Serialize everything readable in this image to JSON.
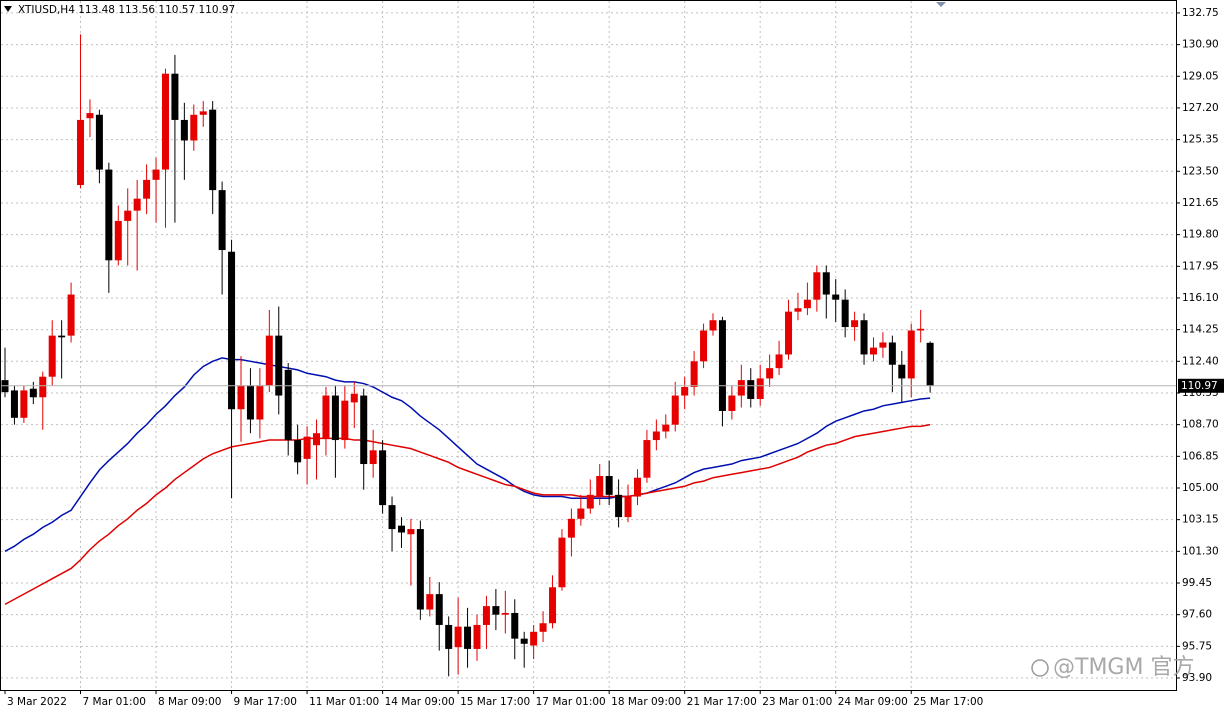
{
  "chart_data": {
    "type": "candlestick",
    "title": "XTIUSD,H4",
    "watermark": "@TMGM 官方",
    "categories": [
      "3 Mar 2022",
      null,
      null,
      null,
      null,
      null,
      null,
      null,
      "7 Mar 01:00",
      null,
      null,
      null,
      null,
      null,
      null,
      null,
      "8 Mar 09:00",
      null,
      null,
      null,
      null,
      null,
      null,
      null,
      "9 Mar 17:00",
      null,
      null,
      null,
      null,
      null,
      null,
      null,
      "11 Mar 01:00",
      null,
      null,
      null,
      null,
      null,
      null,
      null,
      "14 Mar 09:00",
      null,
      null,
      null,
      null,
      null,
      null,
      null,
      "15 Mar 17:00",
      null,
      null,
      null,
      null,
      null,
      null,
      null,
      "17 Mar 01:00",
      null,
      null,
      null,
      null,
      null,
      null,
      null,
      "18 Mar 09:00",
      null,
      null,
      null,
      null,
      null,
      null,
      null,
      "21 Mar 17:00",
      null,
      null,
      null,
      null,
      null,
      null,
      null,
      "23 Mar 01:00",
      null,
      null,
      null,
      null,
      null,
      null,
      null,
      "24 Mar 09:00",
      null,
      null,
      null,
      null,
      null,
      null,
      null,
      "25 Mar 17:00",
      null,
      null
    ],
    "open": [
      111.3,
      110.7,
      109.1,
      110.8,
      110.3,
      111.5,
      113.9,
      113.9,
      122.7,
      126.6,
      126.8,
      123.6,
      118.3,
      120.6,
      121.2,
      121.9,
      123.0,
      123.6,
      129.2,
      126.5,
      125.3,
      126.8,
      127.1,
      122.4,
      118.8,
      109.6,
      111.0,
      109.0,
      111.0,
      113.9,
      111.9,
      107.8,
      106.7,
      107.5,
      107.9,
      110.4,
      107.8,
      110.0,
      110.4,
      106.4,
      107.2,
      104.0,
      102.8,
      102.3,
      102.6,
      97.9,
      98.8,
      97.0,
      95.7,
      96.9,
      95.6,
      97.0,
      98.1,
      97.6,
      97.7,
      96.2,
      95.8,
      96.6,
      97.1,
      99.2,
      102.1,
      103.2,
      103.8,
      104.5,
      105.7,
      104.6,
      103.3,
      104.5,
      105.6,
      107.8,
      108.3,
      108.7,
      110.4,
      110.9,
      112.4,
      114.2,
      114.8,
      109.5,
      110.4,
      111.3,
      110.2,
      111.4,
      112.0,
      112.8,
      115.3,
      115.5,
      116.0,
      117.6,
      116.3,
      116.0,
      114.4,
      114.8,
      112.8,
      113.2,
      113.5,
      112.2,
      111.4,
      114.2,
      113.48
    ],
    "high": [
      113.2,
      111.0,
      111.0,
      111.2,
      111.8,
      114.8,
      114.8,
      117.0,
      131.5,
      127.7,
      127.1,
      124.0,
      121.5,
      122.5,
      123.0,
      123.9,
      124.3,
      129.5,
      130.3,
      127.5,
      127.4,
      127.6,
      127.6,
      122.9,
      119.5,
      112.7,
      112.0,
      112.0,
      115.4,
      115.6,
      112.3,
      108.7,
      108.6,
      109.0,
      110.9,
      111.0,
      111.0,
      111.2,
      110.8,
      108.4,
      107.8,
      104.5,
      103.3,
      103.2,
      103.1,
      99.8,
      99.5,
      97.5,
      98.6,
      98.0,
      97.6,
      98.7,
      99.1,
      99.0,
      98.5,
      96.6,
      97.0,
      97.8,
      99.9,
      102.6,
      103.8,
      104.6,
      105.5,
      106.4,
      106.6,
      105.5,
      105.2,
      106.1,
      108.4,
      109.0,
      109.3,
      111.2,
      111.5,
      113.0,
      114.6,
      115.2,
      115.0,
      111.0,
      112.2,
      112.0,
      112.2,
      112.8,
      113.6,
      116.0,
      116.4,
      117.0,
      118.0,
      118.0,
      117.2,
      116.6,
      115.3,
      115.2,
      113.8,
      114.1,
      113.9,
      113.0,
      114.6,
      115.4,
      113.56
    ],
    "low": [
      110.3,
      108.7,
      108.8,
      109.9,
      108.4,
      111.0,
      111.4,
      113.5,
      122.5,
      125.5,
      122.8,
      116.4,
      118.0,
      118.0,
      117.7,
      121.0,
      120.5,
      120.2,
      120.5,
      123.0,
      124.7,
      126.1,
      121.0,
      116.3,
      104.4,
      107.7,
      108.2,
      107.9,
      110.6,
      109.3,
      106.9,
      105.8,
      105.2,
      105.5,
      106.9,
      105.6,
      107.3,
      108.5,
      104.9,
      105.6,
      103.5,
      101.3,
      101.5,
      99.3,
      97.3,
      97.5,
      95.5,
      94.0,
      94.1,
      94.5,
      94.9,
      95.6,
      96.7,
      96.5,
      95.0,
      94.5,
      95.0,
      96.0,
      96.8,
      99.0,
      101.0,
      102.8,
      103.5,
      104.0,
      104.0,
      102.7,
      103.0,
      104.0,
      105.3,
      107.2,
      107.9,
      108.3,
      109.6,
      110.4,
      112.0,
      113.9,
      108.6,
      109.0,
      109.7,
      109.7,
      109.8,
      110.9,
      111.6,
      112.5,
      114.8,
      115.1,
      115.3,
      114.9,
      114.7,
      113.8,
      113.6,
      112.2,
      112.4,
      112.6,
      110.6,
      110.0,
      110.3,
      113.5,
      110.57
    ],
    "close": [
      110.6,
      109.1,
      110.7,
      110.3,
      111.5,
      113.9,
      113.8,
      116.3,
      126.5,
      126.9,
      123.6,
      118.3,
      120.6,
      121.2,
      121.9,
      123.0,
      123.6,
      129.2,
      126.5,
      125.3,
      126.8,
      127.0,
      122.4,
      118.9,
      109.6,
      111.0,
      109.0,
      111.0,
      113.9,
      110.4,
      107.8,
      106.5,
      108.0,
      108.2,
      110.4,
      107.8,
      110.1,
      110.5,
      106.4,
      107.2,
      104.0,
      102.6,
      102.4,
      102.6,
      97.9,
      98.8,
      97.0,
      95.6,
      96.9,
      95.6,
      97.0,
      98.1,
      97.6,
      97.7,
      96.2,
      95.9,
      96.6,
      97.1,
      99.2,
      102.1,
      103.2,
      103.8,
      104.6,
      105.7,
      104.6,
      103.3,
      104.5,
      105.6,
      107.8,
      108.3,
      108.7,
      110.4,
      110.9,
      112.4,
      114.2,
      114.8,
      109.5,
      110.4,
      111.3,
      110.2,
      111.4,
      112.0,
      112.8,
      115.3,
      115.5,
      116.0,
      117.6,
      116.3,
      116.0,
      114.4,
      114.8,
      112.8,
      113.2,
      113.5,
      112.2,
      111.4,
      114.2,
      114.3,
      110.97
    ],
    "up_color": "#e60000",
    "down_color": "#000000",
    "lines": [
      {
        "color": "#0010b0",
        "values": [
          101.3,
          101.6,
          102.0,
          102.3,
          102.7,
          103.0,
          103.4,
          103.7,
          104.5,
          105.3,
          106.05,
          106.6,
          107.1,
          107.6,
          108.2,
          108.7,
          109.3,
          109.8,
          110.4,
          110.9,
          111.6,
          112.1,
          112.4,
          112.6,
          112.5,
          112.5,
          112.4,
          112.3,
          112.2,
          112.1,
          112.0,
          111.9,
          111.7,
          111.6,
          111.5,
          111.3,
          111.2,
          111.2,
          111.1,
          110.9,
          110.6,
          110.3,
          110.1,
          109.7,
          109.2,
          108.8,
          108.4,
          107.9,
          107.4,
          106.9,
          106.4,
          106.1,
          105.8,
          105.5,
          105.1,
          104.8,
          104.6,
          104.5,
          104.5,
          104.5,
          104.4,
          104.4,
          104.4,
          104.4,
          104.4,
          104.5,
          104.5,
          104.6,
          104.7,
          104.9,
          105.1,
          105.3,
          105.6,
          105.9,
          106.1,
          106.2,
          106.3,
          106.4,
          106.6,
          106.7,
          106.8,
          107.0,
          107.2,
          107.4,
          107.6,
          107.9,
          108.2,
          108.6,
          108.9,
          109.1,
          109.3,
          109.5,
          109.6,
          109.8,
          109.9,
          110.0,
          110.1,
          110.2,
          110.25
        ]
      },
      {
        "color": "#e00000",
        "values": [
          98.2,
          98.5,
          98.8,
          99.1,
          99.4,
          99.7,
          100.0,
          100.3,
          100.8,
          101.4,
          101.9,
          102.3,
          102.8,
          103.2,
          103.7,
          104.1,
          104.6,
          105.0,
          105.5,
          105.9,
          106.3,
          106.7,
          107.0,
          107.2,
          107.4,
          107.5,
          107.6,
          107.7,
          107.8,
          107.8,
          107.8,
          107.8,
          107.9,
          107.9,
          107.9,
          107.9,
          107.9,
          107.8,
          107.8,
          107.7,
          107.6,
          107.5,
          107.4,
          107.3,
          107.1,
          106.9,
          106.7,
          106.5,
          106.2,
          106.0,
          105.8,
          105.6,
          105.4,
          105.2,
          105.1,
          104.9,
          104.7,
          104.6,
          104.6,
          104.6,
          104.6,
          104.5,
          104.5,
          104.5,
          104.5,
          104.5,
          104.5,
          104.6,
          104.7,
          104.8,
          104.9,
          105.0,
          105.1,
          105.3,
          105.4,
          105.6,
          105.7,
          105.8,
          105.9,
          106.0,
          106.1,
          106.2,
          106.4,
          106.6,
          106.8,
          107.1,
          107.3,
          107.5,
          107.6,
          107.8,
          108.0,
          108.1,
          108.2,
          108.3,
          108.4,
          108.5,
          108.6,
          108.6,
          108.7
        ]
      }
    ],
    "ylim": [
      93.2,
      133.33
    ],
    "yticks": [
      {
        "value": 93.9,
        "label": "93.90"
      },
      95.75,
      {
        "value": 97.6,
        "label": "97.60"
      },
      99.45,
      {
        "value": 101.3,
        "label": "101.30"
      },
      103.15,
      {
        "value": 105,
        "label": "105.00"
      },
      106.85,
      {
        "value": 108.7,
        "label": "108.70"
      },
      110.55,
      {
        "value": 112.4,
        "label": "112.40"
      },
      114.25,
      {
        "value": 116.1,
        "label": "116.10"
      },
      117.95,
      {
        "value": 119.8,
        "label": "119.80"
      },
      121.65,
      {
        "value": 123.5,
        "label": "123.50"
      },
      125.35,
      {
        "value": 127.2,
        "label": "127.20"
      },
      129.05,
      {
        "value": 130.9,
        "label": "130.90"
      },
      132.75
    ],
    "grid": true
  }
}
